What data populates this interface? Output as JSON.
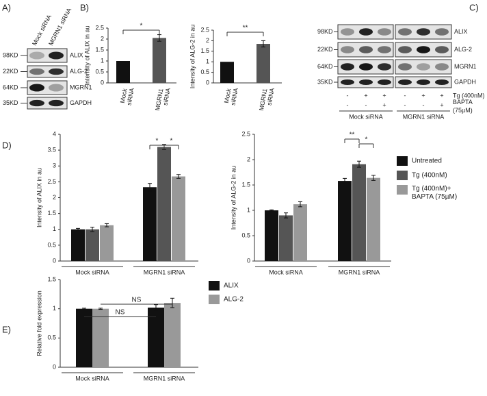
{
  "panels": {
    "a": "A)",
    "b": "B)",
    "c": "C)",
    "d": "D)",
    "e": "E)"
  },
  "blot_a": {
    "lanes": [
      "Mock siRNA",
      "MGRN1 siRNA"
    ],
    "rows": [
      {
        "size": "98KD",
        "protein": "ALIX"
      },
      {
        "size": "22KD",
        "protein": "ALG-2"
      },
      {
        "size": "64KD",
        "protein": "MGRN1"
      },
      {
        "size": "35KD",
        "protein": "GAPDH"
      }
    ]
  },
  "blot_c": {
    "rows": [
      {
        "size": "98KD",
        "protein": "ALIX"
      },
      {
        "size": "22KD",
        "protein": "ALG-2"
      },
      {
        "size": "64KD",
        "protein": "MGRN1"
      },
      {
        "size": "35KD",
        "protein": "GAPDH"
      }
    ],
    "treatments": [
      {
        "name": "Tg (400nM)",
        "signs": [
          "-",
          "+",
          "+",
          "-",
          "+",
          "+"
        ]
      },
      {
        "name": "BAPTA (75µM)",
        "signs": [
          "-",
          "-",
          "+",
          "-",
          "-",
          "+"
        ]
      }
    ],
    "groups": [
      "Mock siRNA",
      "MGRN1 siRNA"
    ]
  },
  "chart_data": [
    {
      "type": "bar",
      "ylabel": "Intensity of ALIX in au",
      "categories": [
        "Mock siRNA",
        "MGRN1 siRNA"
      ],
      "values": [
        1,
        2.05
      ],
      "errors": [
        null,
        0.15
      ],
      "colors": [
        "#111111",
        "#555555"
      ],
      "ylim": [
        0,
        2.5
      ],
      "yticks": [
        0,
        0.5,
        1,
        1.5,
        2,
        2.5
      ],
      "annotations": [
        "*"
      ]
    },
    {
      "type": "bar",
      "ylabel": "Intensity of ALG-2 in au",
      "categories": [
        "Mock siRNA",
        "MGRN1 siRNA"
      ],
      "values": [
        1,
        1.85
      ],
      "errors": [
        null,
        0.15
      ],
      "colors": [
        "#111111",
        "#555555"
      ],
      "ylim": [
        0,
        2.5
      ],
      "yticks": [
        0,
        0.5,
        1,
        1.5,
        2,
        2.5
      ],
      "annotations": [
        "**"
      ]
    },
    {
      "type": "grouped_bar",
      "ylabel": "Intensity of ALIX in au",
      "categories": [
        "Mock siRNA",
        "MGRN1 siRNA"
      ],
      "series": [
        {
          "name": "Untreated",
          "color": "#111111",
          "values": [
            1,
            2.33
          ],
          "errors": [
            0.03,
            0.12
          ]
        },
        {
          "name": "Tg (400nM)",
          "color": "#555555",
          "values": [
            1,
            3.6
          ],
          "errors": [
            0.07,
            0.08
          ]
        },
        {
          "name": "Tg (400nM)+ BAPTA (75µM)",
          "color": "#999999",
          "values": [
            1.13,
            2.67
          ],
          "errors": [
            0.05,
            0.06
          ]
        }
      ],
      "ylim": [
        0,
        4
      ],
      "yticks": [
        0,
        0.5,
        1,
        1.5,
        2,
        2.5,
        3,
        3.5,
        4
      ],
      "annotations": [
        "*",
        "*"
      ],
      "legend": false
    },
    {
      "type": "grouped_bar",
      "ylabel": "Intensity of ALG-2 in au",
      "categories": [
        "Mock siRNA",
        "MGRN1 siRNA"
      ],
      "series": [
        {
          "name": "Untreated",
          "color": "#111111",
          "values": [
            1,
            1.58
          ],
          "errors": [
            0.01,
            0.05
          ]
        },
        {
          "name": "Tg (400nM)",
          "color": "#555555",
          "values": [
            0.9,
            1.91
          ],
          "errors": [
            0.05,
            0.06
          ]
        },
        {
          "name": "Tg (400nM)+ BAPTA (75µM)",
          "color": "#999999",
          "values": [
            1.12,
            1.64
          ],
          "errors": [
            0.05,
            0.05
          ]
        }
      ],
      "ylim": [
        0,
        2.5
      ],
      "yticks": [
        0,
        0.5,
        1,
        1.5,
        2,
        2.5
      ],
      "annotations": [
        "**",
        "*"
      ],
      "legend": true
    },
    {
      "type": "grouped_bar",
      "ylabel": "Relative fold expression",
      "categories": [
        "Mock siRNA",
        "MGRN1 siRNA"
      ],
      "series": [
        {
          "name": "ALIX",
          "color": "#111111",
          "values": [
            1,
            1.02
          ],
          "errors": [
            0.01,
            0.05
          ]
        },
        {
          "name": "ALG-2",
          "color": "#999999",
          "values": [
            1,
            1.1
          ],
          "errors": [
            0.01,
            0.08
          ]
        }
      ],
      "ylim": [
        0,
        1.5
      ],
      "yticks": [
        0,
        0.5,
        1,
        1.5
      ],
      "annotations": [
        "NS",
        "NS"
      ],
      "legend": true
    }
  ]
}
